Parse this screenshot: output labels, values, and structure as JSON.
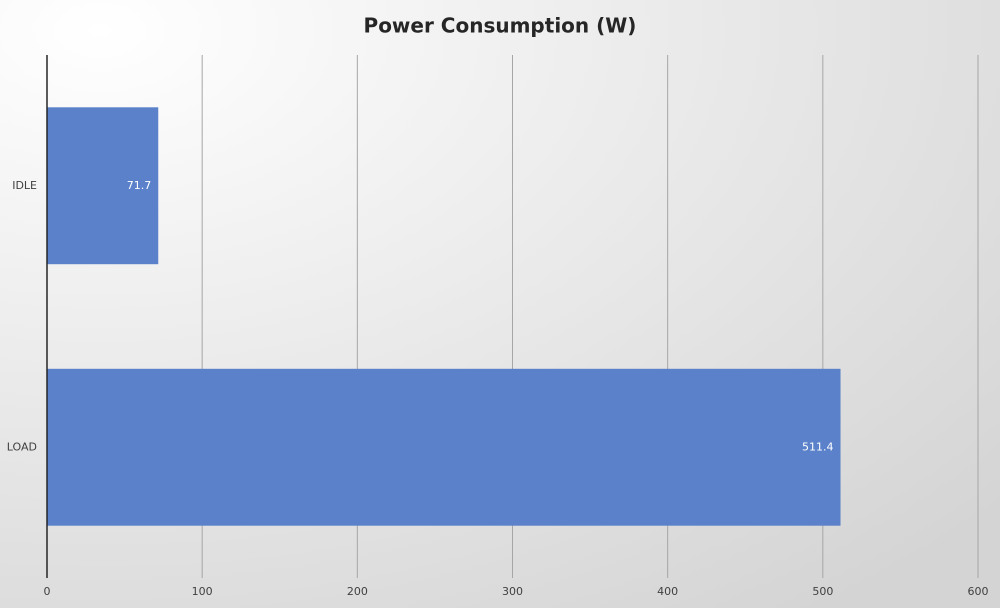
{
  "chart_data": {
    "type": "bar",
    "orientation": "horizontal",
    "title": "Power Consumption (W)",
    "categories": [
      "IDLE",
      "LOAD"
    ],
    "values": [
      71.7,
      511.4
    ],
    "color": "#5a81c9",
    "xlim": [
      0,
      600
    ],
    "xticks": [
      0,
      100,
      200,
      300,
      400,
      500,
      600
    ],
    "grid": true
  }
}
